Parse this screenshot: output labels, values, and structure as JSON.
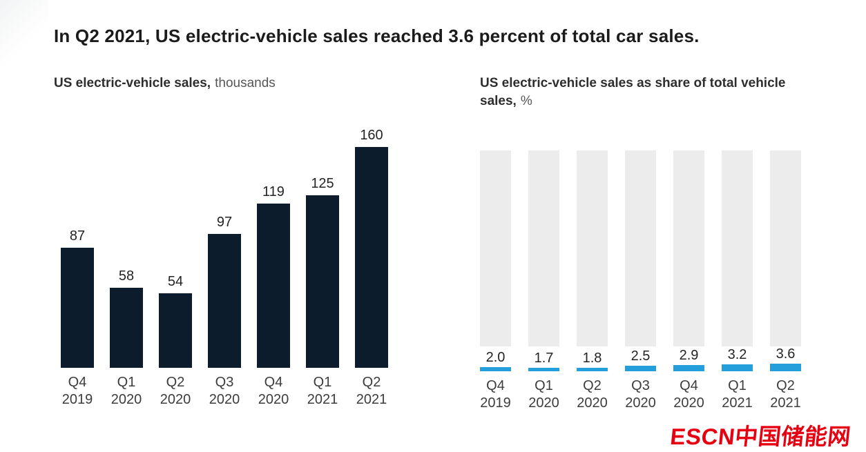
{
  "page": {
    "title": "In Q2 2021, US electric-vehicle sales reached 3.6 percent of total car sales."
  },
  "left_chart": {
    "heading": "US electric-vehicle sales,",
    "unit": "thousands"
  },
  "right_chart": {
    "heading": "US electric-vehicle sales as share of total vehicle sales,",
    "unit": "%"
  },
  "logo": {
    "text": "ESCN中国储能网",
    "color": "#e60112"
  },
  "colors": {
    "navy": "#0c1c2c",
    "blue": "#249fdc",
    "track_gray": "#ececec"
  },
  "chart_data": [
    {
      "type": "bar",
      "title": "US electric-vehicle sales, thousands",
      "categories": [
        "Q4\n2019",
        "Q1\n2020",
        "Q2\n2020",
        "Q3\n2020",
        "Q4\n2020",
        "Q1\n2021",
        "Q2\n2021"
      ],
      "values": [
        87,
        58,
        54,
        97,
        119,
        125,
        160
      ],
      "value_labels": [
        "87",
        "58",
        "54",
        "97",
        "119",
        "125",
        "160"
      ],
      "bar_color": "#0c1c2c",
      "xlabel": "",
      "ylabel": "thousands",
      "ylim": [
        0,
        160
      ],
      "grid": false,
      "legend": false
    },
    {
      "type": "bar",
      "subtype": "share-of-total",
      "title": "US electric-vehicle sales as share of total vehicle sales, %",
      "categories": [
        "Q4\n2019",
        "Q1\n2020",
        "Q2\n2020",
        "Q3\n2020",
        "Q4\n2020",
        "Q1\n2021",
        "Q2\n2021"
      ],
      "values": [
        2.0,
        1.7,
        1.8,
        2.5,
        2.9,
        3.2,
        3.6
      ],
      "value_labels": [
        "2.0",
        "1.7",
        "1.8",
        "2.5",
        "2.9",
        "3.2",
        "3.6"
      ],
      "bar_color": "#249fdc",
      "track_color": "#ececec",
      "xlabel": "",
      "ylabel": "%",
      "ylim": [
        0,
        4
      ],
      "grid": false,
      "legend": false
    }
  ]
}
